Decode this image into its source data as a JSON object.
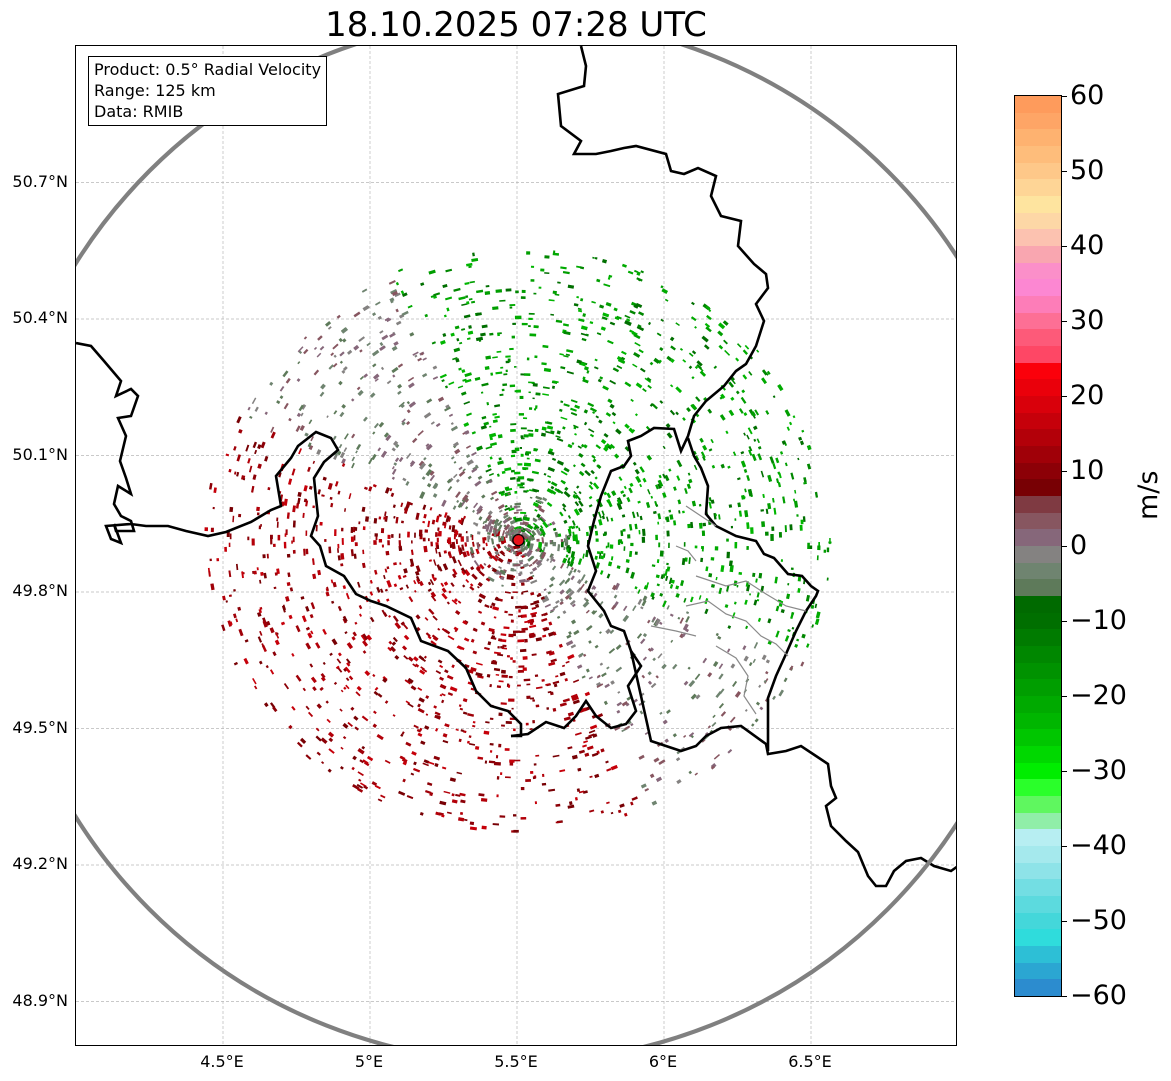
{
  "title": "18.10.2025 07:28 UTC",
  "info": {
    "product": "Product: 0.5° Radial Velocity",
    "range": "Range: 125 km",
    "data_source": "Data: RMIB"
  },
  "map": {
    "lon_range": [
      4.0,
      7.0
    ],
    "lat_range": [
      48.8,
      51.0
    ],
    "lat_ticks": [
      "50.7°N",
      "50.4°N",
      "50.1°N",
      "49.8°N",
      "49.5°N",
      "49.2°N",
      "48.9°N"
    ],
    "lon_ticks": [
      "4.5°E",
      "5°E",
      "5.5°E",
      "6°E",
      "6.5°E"
    ],
    "radar_site": {
      "lon": 5.505,
      "lat": 49.914,
      "color": "#e8131b"
    },
    "range_ring_color": "#808080"
  },
  "colorbar": {
    "unit": "m/s",
    "min": -60,
    "max": 60,
    "tick_labels": [
      "60",
      "50",
      "40",
      "30",
      "20",
      "10",
      "0",
      "−10",
      "−20",
      "−30",
      "−40",
      "−50",
      "−60"
    ],
    "colors_top_to_bottom": [
      "#fe9b5c",
      "#fea566",
      "#feb270",
      "#febd7b",
      "#fec889",
      "#fed596",
      "#fee49f",
      "#fdd7a6",
      "#fcc2b0",
      "#f9a6b0",
      "#fb8fc9",
      "#fc87d2",
      "#fd7db8",
      "#fd6f95",
      "#fd5a79",
      "#fe4765",
      "#fb000b",
      "#ea000b",
      "#d9000b",
      "#c6000a",
      "#b30009",
      "#a00008",
      "#8c0007",
      "#780004",
      "#7f3a42",
      "#875660",
      "#86677a",
      "#848281",
      "#6f8470",
      "#5e7a5a",
      "#006a00",
      "#006f00",
      "#007b00",
      "#008700",
      "#009200",
      "#009e00",
      "#00aa00",
      "#00b600",
      "#00c600",
      "#00d800",
      "#00ed00",
      "#2aff2a",
      "#5ff75f",
      "#90eea8",
      "#b7eef2",
      "#a5e9ed",
      "#8ee3e8",
      "#73dee3",
      "#5cdade",
      "#44d7da",
      "#2fdcdc",
      "#2dbfd6",
      "#2ba6d2",
      "#2c8ccf"
    ]
  }
}
